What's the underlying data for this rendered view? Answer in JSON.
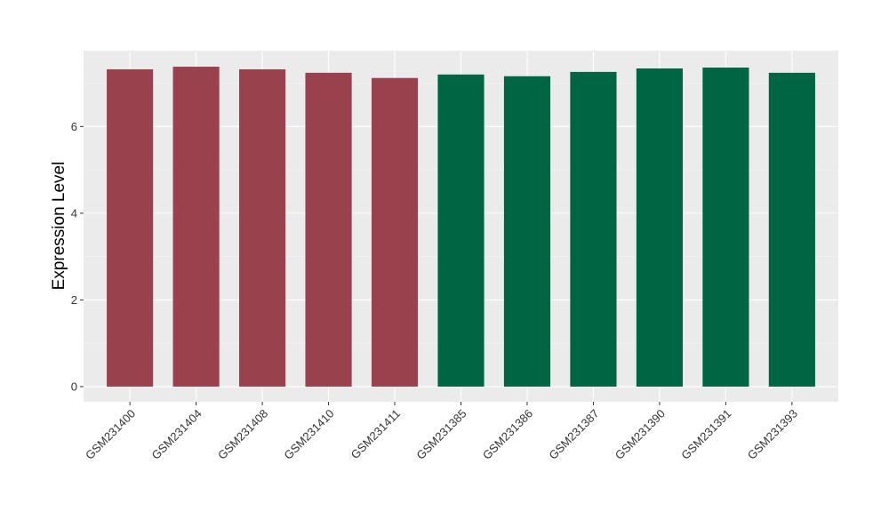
{
  "chart_data": {
    "type": "bar",
    "title": "",
    "xlabel": "",
    "ylabel": "Expression Level",
    "ylim": [
      -0.35,
      7.75
    ],
    "yticks": [
      0,
      2,
      4,
      6
    ],
    "grid": true,
    "legend": "none",
    "panel_background": "#EBEBEB",
    "categories": [
      "GSM231400",
      "GSM231404",
      "GSM231408",
      "GSM231410",
      "GSM231411",
      "GSM231385",
      "GSM231386",
      "GSM231387",
      "GSM231390",
      "GSM231391",
      "GSM231393"
    ],
    "values": [
      7.32,
      7.38,
      7.32,
      7.24,
      7.12,
      7.2,
      7.16,
      7.26,
      7.34,
      7.36,
      7.24
    ],
    "group_index": [
      0,
      0,
      0,
      0,
      0,
      1,
      1,
      1,
      1,
      1,
      1
    ],
    "group_colors": [
      "#99414D",
      "#006543"
    ]
  }
}
